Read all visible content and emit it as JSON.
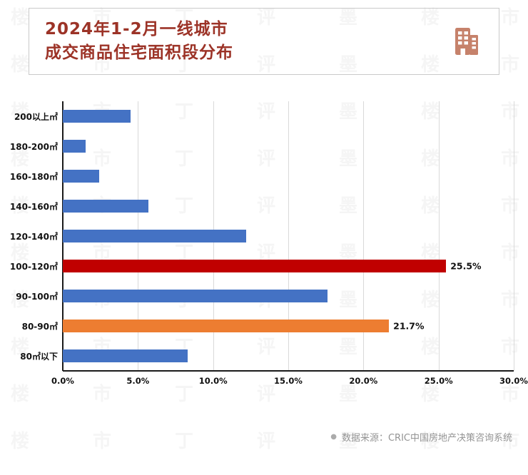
{
  "title": {
    "line1": "2024年1-2月一线城市",
    "line2": "成交商品住宅面积段分布"
  },
  "chart_data": {
    "type": "bar",
    "orientation": "horizontal",
    "title": "2024年1-2月一线城市成交商品住宅面积段分布",
    "categories": [
      "200以上㎡",
      "180-200㎡",
      "160-180㎡",
      "140-160㎡",
      "120-140㎡",
      "100-120㎡",
      "90-100㎡",
      "80-90㎡",
      "80㎡以下"
    ],
    "values": [
      4.5,
      1.5,
      2.4,
      5.7,
      12.2,
      25.5,
      17.6,
      21.7,
      8.3
    ],
    "bar_colors": [
      "#4472C4",
      "#4472C4",
      "#4472C4",
      "#4472C4",
      "#4472C4",
      "#C00000",
      "#4472C4",
      "#ED7D31",
      "#4472C4"
    ],
    "value_labels": [
      "",
      "",
      "",
      "",
      "",
      "25.5%",
      "",
      "21.7%",
      ""
    ],
    "xlim": [
      0,
      30
    ],
    "x_ticks": [
      "0.0%",
      "5.0%",
      "10.0%",
      "15.0%",
      "20.0%",
      "25.0%",
      "30.0%"
    ],
    "grid": true,
    "legend": false
  },
  "colors": {
    "bar_default": "#4472C4",
    "bar_highlight_red": "#C00000",
    "bar_highlight_orange": "#ED7D31",
    "title_text": "#9C3327",
    "icon": "#C6826B",
    "source_text": "#949494"
  },
  "footer": {
    "bullet": "●",
    "source": "数据来源：CRIC中国房地产决策咨询系统"
  },
  "watermark": {
    "chars": [
      "楼",
      "市",
      "丁",
      "评",
      "墨"
    ]
  }
}
